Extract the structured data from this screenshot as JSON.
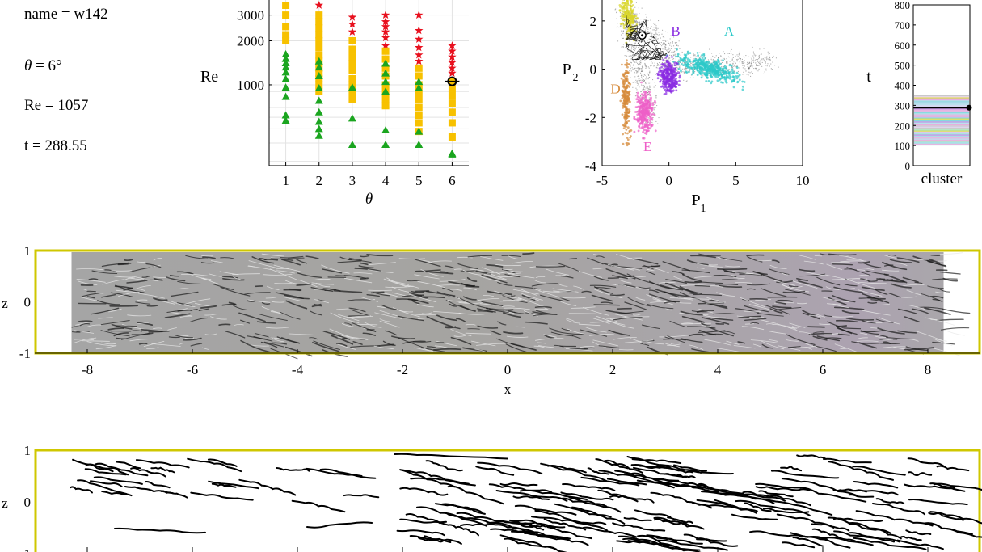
{
  "info": {
    "name_line": "name = w142",
    "theta_var": "θ",
    "theta_rest": " = 6°",
    "re_line": "Re = 1057",
    "t_line": "t = 288.55"
  },
  "chart_data": [
    {
      "type": "scatter",
      "xlabel": "θ",
      "ylabel": "Re",
      "y_scale": "log",
      "xlim": [
        0.5,
        6.5
      ],
      "ylim": [
        280,
        4000
      ],
      "x_ticks": [
        "1",
        "2",
        "3",
        "4",
        "5",
        "6"
      ],
      "y_ticks": [
        "1000",
        "2000",
        "3000"
      ],
      "y_tick_values": [
        1000,
        2000,
        3000
      ],
      "grid": true,
      "series": [
        {
          "marker": "star",
          "color": "#e8101e",
          "points": [
            [
              2,
              3500
            ],
            [
              3,
              2900
            ],
            [
              3,
              2600
            ],
            [
              3,
              2300
            ],
            [
              4,
              3000
            ],
            [
              4,
              2700
            ],
            [
              4,
              2500
            ],
            [
              4,
              2300
            ],
            [
              4,
              2100
            ],
            [
              4,
              1850
            ],
            [
              5,
              3000
            ],
            [
              5,
              2350
            ],
            [
              5,
              2050
            ],
            [
              5,
              1800
            ],
            [
              5,
              1600
            ],
            [
              5,
              1450
            ],
            [
              6,
              1850
            ],
            [
              6,
              1700
            ],
            [
              6,
              1550
            ],
            [
              6,
              1420
            ],
            [
              6,
              1300
            ],
            [
              6,
              1200
            ]
          ]
        },
        {
          "marker": "square",
          "color": "#f7c100",
          "points": [
            [
              1,
              3500
            ],
            [
              1,
              3000
            ],
            [
              1,
              2500
            ],
            [
              1,
              2200
            ],
            [
              1,
              2000
            ],
            [
              2,
              3000
            ],
            [
              2,
              2700
            ],
            [
              2,
              2450
            ],
            [
              2,
              2200
            ],
            [
              2,
              2000
            ],
            [
              2,
              1800
            ],
            [
              2,
              1600
            ],
            [
              2,
              1450
            ],
            [
              2,
              1300
            ],
            [
              2,
              1200
            ],
            [
              2,
              1100
            ],
            [
              2,
              1000
            ],
            [
              2,
              900
            ],
            [
              3,
              2000
            ],
            [
              3,
              1750
            ],
            [
              3,
              1550
            ],
            [
              3,
              1400
            ],
            [
              3,
              1250
            ],
            [
              3,
              1100
            ],
            [
              3,
              1000
            ],
            [
              3,
              900
            ],
            [
              3,
              800
            ],
            [
              4,
              1700
            ],
            [
              4,
              1500
            ],
            [
              4,
              1300
            ],
            [
              4,
              1150
            ],
            [
              4,
              1000
            ],
            [
              4,
              900
            ],
            [
              4,
              800
            ],
            [
              4,
              720
            ],
            [
              5,
              1300
            ],
            [
              5,
              1150
            ],
            [
              5,
              1000
            ],
            [
              5,
              900
            ],
            [
              5,
              800
            ],
            [
              5,
              700
            ],
            [
              5,
              620
            ],
            [
              5,
              550
            ],
            [
              5,
              480
            ],
            [
              6,
              1050
            ],
            [
              6,
              950
            ],
            [
              6,
              850
            ],
            [
              6,
              750
            ],
            [
              6,
              650
            ],
            [
              6,
              550
            ],
            [
              6,
              440
            ]
          ]
        },
        {
          "marker": "triangle",
          "color": "#1aa51f",
          "points": [
            [
              1,
              1620
            ],
            [
              1,
              1510
            ],
            [
              1,
              1410
            ],
            [
              1,
              1320
            ],
            [
              1,
              1220
            ],
            [
              1,
              1100
            ],
            [
              1,
              960
            ],
            [
              1,
              830
            ],
            [
              1,
              620
            ],
            [
              1,
              570
            ],
            [
              2,
              1450
            ],
            [
              2,
              1320
            ],
            [
              2,
              1150
            ],
            [
              2,
              950
            ],
            [
              2,
              780
            ],
            [
              2,
              650
            ],
            [
              2,
              560
            ],
            [
              2,
              500
            ],
            [
              2,
              450
            ],
            [
              3,
              960
            ],
            [
              3,
              590
            ],
            [
              3,
              390
            ],
            [
              4,
              1400
            ],
            [
              4,
              1200
            ],
            [
              4,
              1050
            ],
            [
              4,
              900
            ],
            [
              4,
              490
            ],
            [
              4,
              390
            ],
            [
              5,
              1050
            ],
            [
              5,
              950
            ],
            [
              5,
              480
            ],
            [
              5,
              390
            ],
            [
              6,
              340
            ],
            [
              6,
              335
            ]
          ]
        }
      ],
      "highlight": {
        "x": 6,
        "y": 1057
      }
    },
    {
      "type": "scatter",
      "xlabel": "P",
      "xlabel_sub": "1",
      "ylabel": "P",
      "ylabel_sub": "2",
      "xlim": [
        -5,
        10
      ],
      "ylim": [
        -4,
        3
      ],
      "x_ticks": [
        "-5",
        "0",
        "5",
        "10"
      ],
      "x_tick_values": [
        -5,
        0,
        5,
        10
      ],
      "y_ticks": [
        "-4",
        "-2",
        "0",
        "2"
      ],
      "y_tick_values": [
        -4,
        -2,
        0,
        2
      ],
      "clusters": [
        {
          "label": "A",
          "color": "#2cc9c9",
          "center": [
            3.0,
            0.0
          ],
          "label_pos": [
            4.5,
            1.4
          ]
        },
        {
          "label": "B",
          "color": "#8a2be2",
          "center": [
            0.0,
            -0.3
          ],
          "label_pos": [
            0.5,
            1.4
          ]
        },
        {
          "label": "C",
          "color": "#d8d62a",
          "center": [
            -3.0,
            2.2
          ],
          "label_pos": null
        },
        {
          "label": "D",
          "color": "#d68a3a",
          "center": [
            -3.2,
            -1.3
          ],
          "label_pos": [
            -4.0,
            -1.0
          ]
        },
        {
          "label": "E",
          "color": "#ee5fc8",
          "center": [
            -1.8,
            -1.8
          ],
          "label_pos": [
            -1.6,
            -3.4
          ]
        }
      ],
      "current_point": [
        -2.0,
        1.4
      ]
    },
    {
      "type": "bar",
      "xlabel": "cluster",
      "ylabel": "t",
      "ylim": [
        0,
        800
      ],
      "y_ticks": [
        "0",
        "100",
        "200",
        "300",
        "400",
        "500",
        "600",
        "700",
        "800"
      ],
      "y_tick_values": [
        0,
        100,
        200,
        300,
        400,
        500,
        600,
        700,
        800
      ],
      "t_start": 100,
      "t_end": 350,
      "current_t": 288.55
    },
    {
      "type": "heatmap",
      "xlabel": "x",
      "ylabel": "z",
      "xlim": [
        -9,
        9
      ],
      "ylim": [
        -1,
        1
      ],
      "x_ticks": [
        "-8",
        "-6",
        "-4",
        "-2",
        "0",
        "2",
        "4",
        "6",
        "8"
      ],
      "x_tick_values": [
        -8,
        -6,
        -4,
        -2,
        0,
        2,
        4,
        6,
        8
      ],
      "y_ticks": [
        "-1",
        "0",
        "1"
      ],
      "y_tick_values": [
        -1,
        0,
        1
      ],
      "field_xlim": [
        -8.3,
        8.3
      ]
    },
    {
      "type": "line",
      "xlabel": "",
      "ylabel": "z",
      "xlim": [
        -9,
        9
      ],
      "ylim": [
        -1,
        1
      ],
      "y_ticks": [
        "-1",
        "0",
        "1"
      ],
      "y_tick_values": [
        -1,
        0,
        1
      ]
    }
  ]
}
